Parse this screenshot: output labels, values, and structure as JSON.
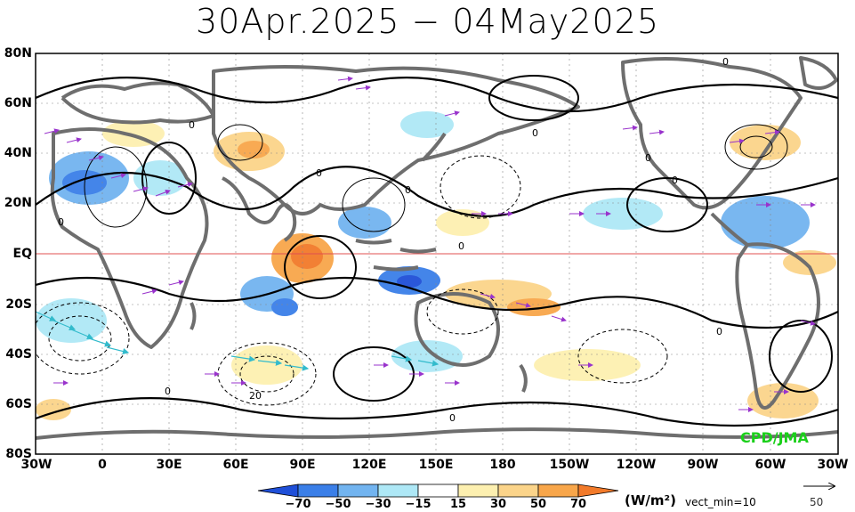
{
  "title": "30Apr.2025 − 04May2025",
  "lat_labels": [
    "80N",
    "60N",
    "40N",
    "20N",
    "EQ",
    "20S",
    "40S",
    "60S",
    "80S"
  ],
  "lon_labels": [
    "30W",
    "0",
    "30E",
    "60E",
    "90E",
    "120E",
    "150E",
    "180",
    "150W",
    "120W",
    "90W",
    "60W",
    "30W"
  ],
  "contour_labels": [
    "0",
    "0",
    "0",
    "0",
    "0",
    "0",
    "0",
    "0",
    "0",
    "0",
    "0",
    "0",
    "20"
  ],
  "credit": "CPD/JMA",
  "colorbar": {
    "ticks": [
      "−70",
      "−50",
      "−30",
      "−15",
      "15",
      "30",
      "50",
      "70"
    ],
    "unit": "(W/m²)",
    "vector_note": "vect_min=10",
    "reference_vector": "50",
    "colors": [
      "#1f4fd8",
      "#3b7fe8",
      "#72b4f0",
      "#aee8f6",
      "#ffffff",
      "#fdf0b0",
      "#fbd48a",
      "#f8a64a",
      "#f27a2a"
    ]
  },
  "colors": {
    "land_outline": "#6e6e6e",
    "vector": "#9933cc",
    "strong_vector": "#33bbcc",
    "equator": "#e05050",
    "positive_anom": "#fbd48a",
    "negative_anom": "#72b4f0"
  }
}
